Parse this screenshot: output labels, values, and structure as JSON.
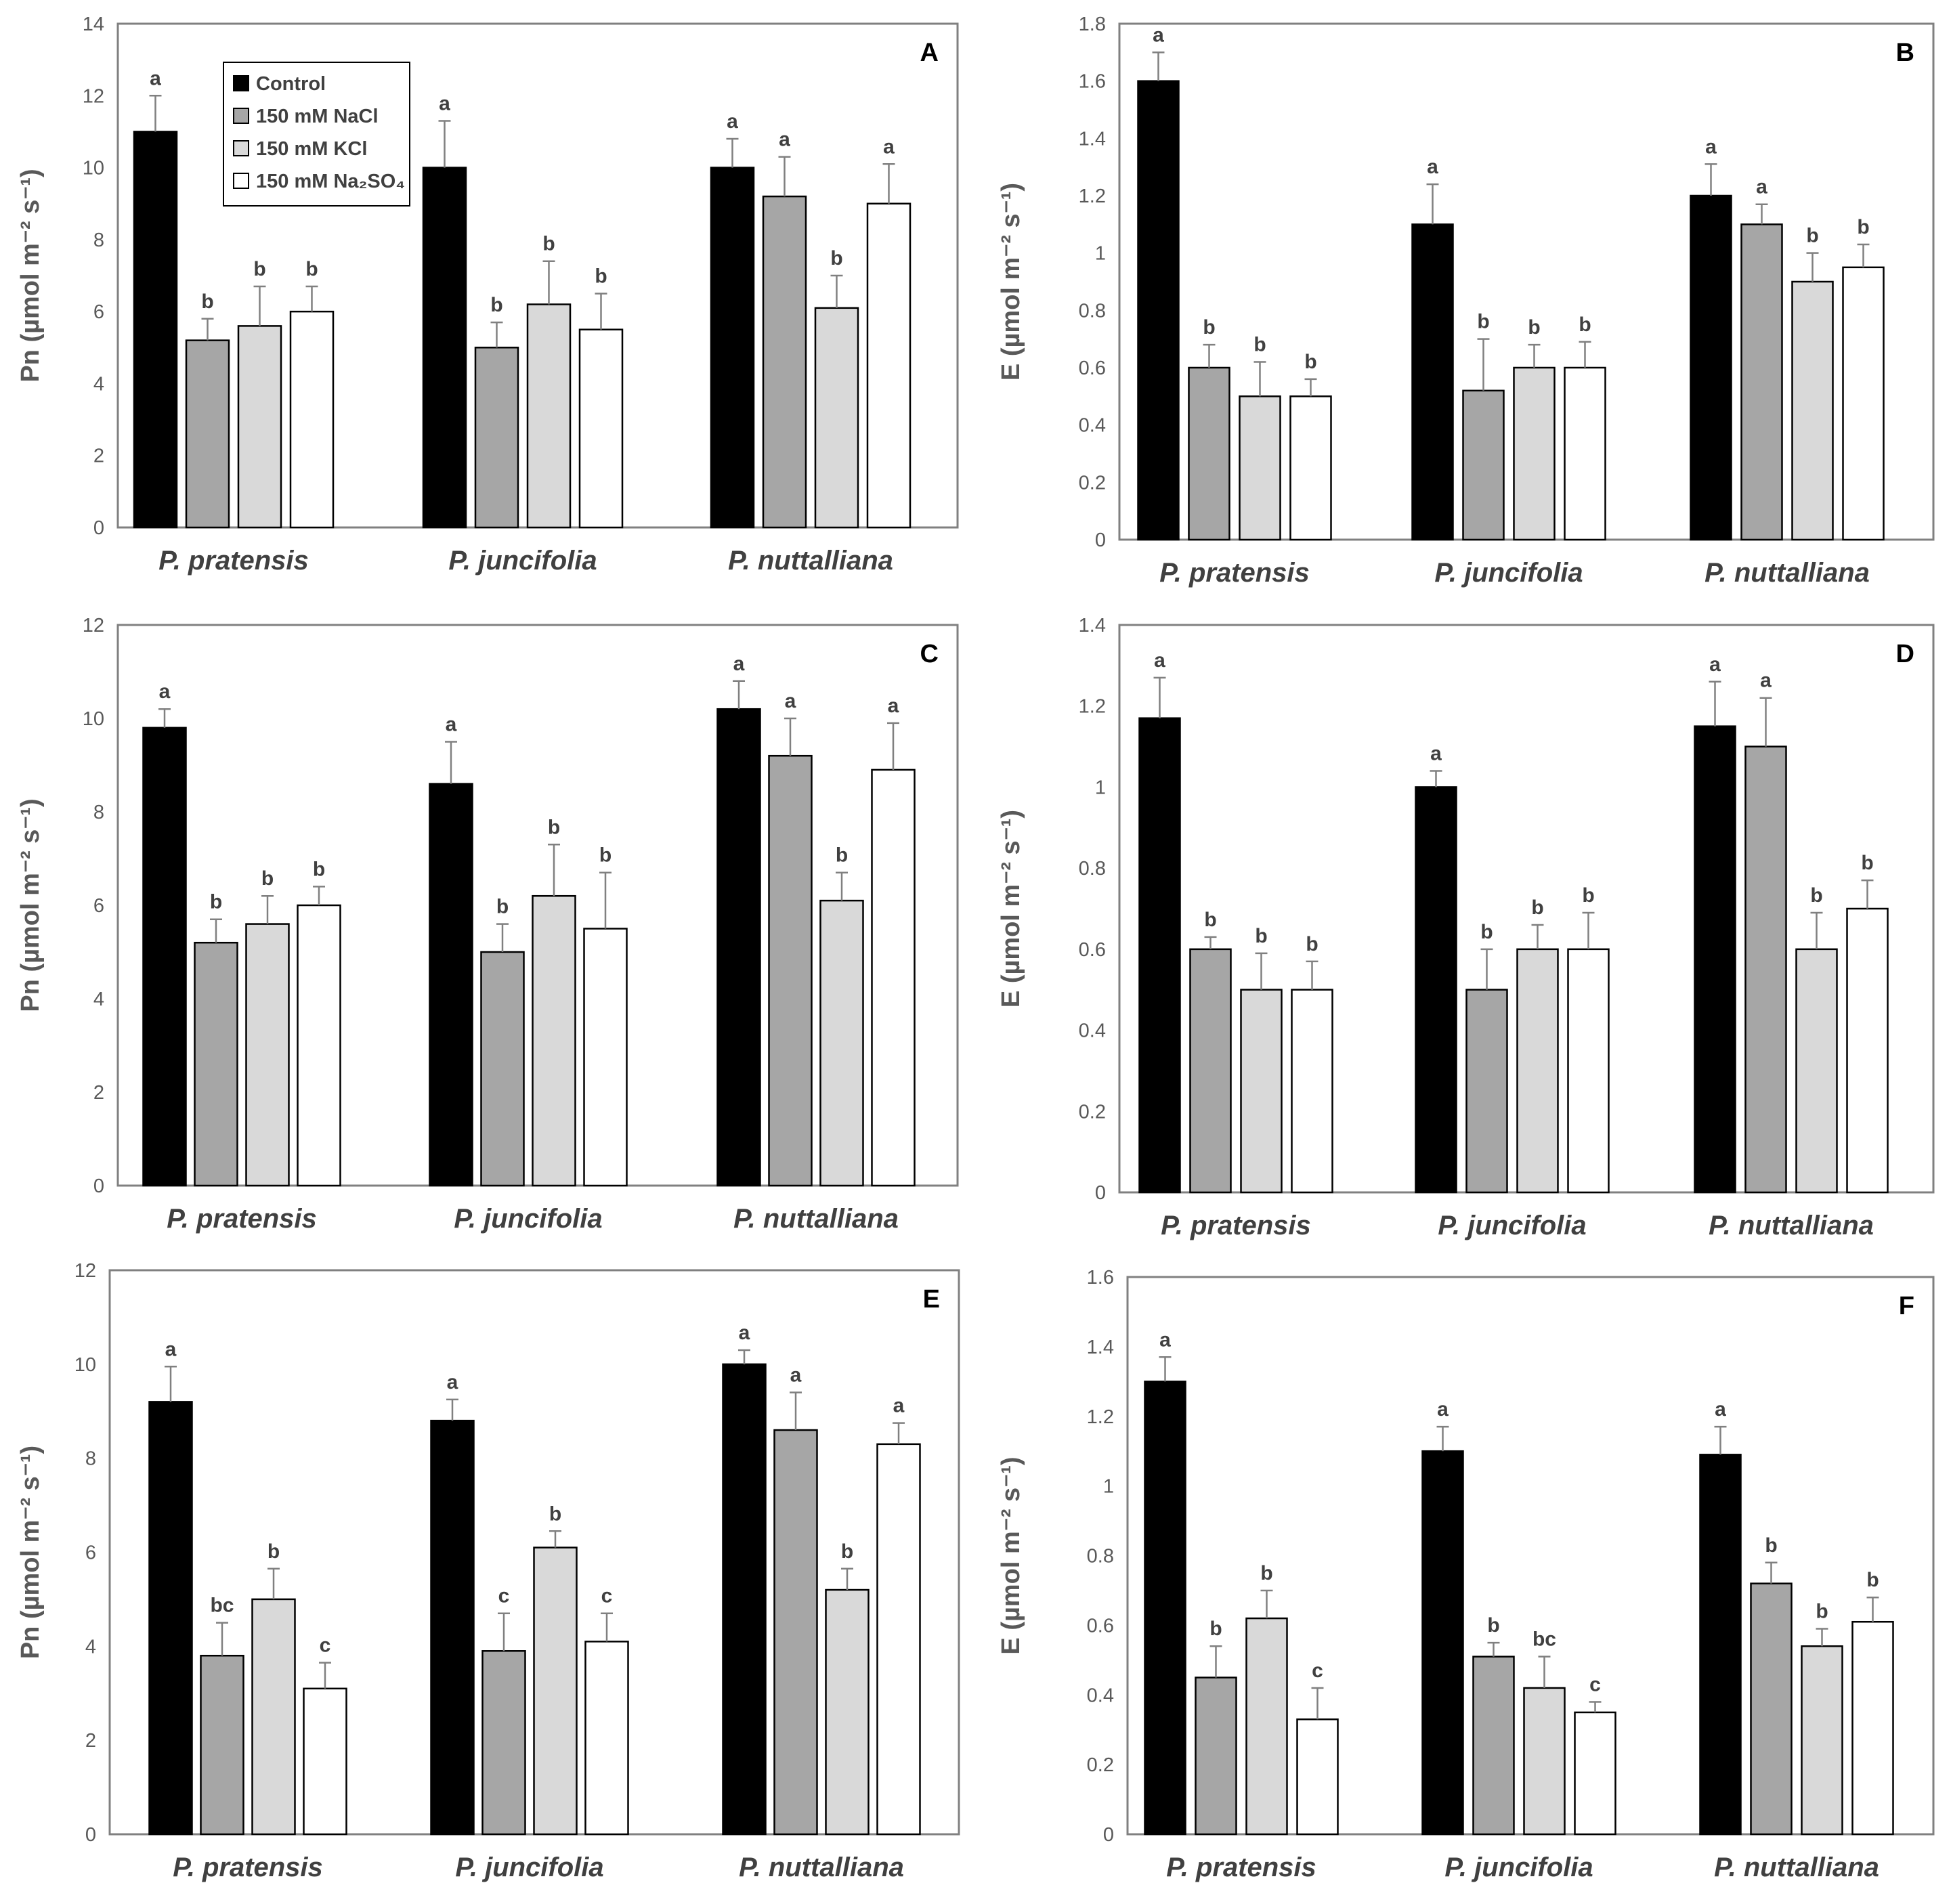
{
  "legend": {
    "items": [
      {
        "label": "Control",
        "color": "#000000"
      },
      {
        "label": "150 mM NaCl",
        "color": "#a6a6a6"
      },
      {
        "label": "150 mM KCl",
        "color": "#d9d9d9"
      },
      {
        "label": "150 mM Na₂SO₄",
        "color": "#ffffff"
      }
    ]
  },
  "chart_data": [
    {
      "type": "bar",
      "panel": "A",
      "categories": [
        "P. pratensis",
        "P. juncifolia",
        "P. nuttalliana"
      ],
      "ylabel": "Pn (µmol m⁻² s⁻¹)",
      "ylim": [
        0,
        14
      ],
      "yticks": [
        "0",
        "2",
        "4",
        "6",
        "8",
        "10",
        "12",
        "14"
      ],
      "series": [
        {
          "name": "Control",
          "values": [
            11,
            10,
            10
          ],
          "errors": [
            1.0,
            1.3,
            0.8
          ],
          "letters": [
            "a",
            "a",
            "a"
          ]
        },
        {
          "name": "150 mM NaCl",
          "values": [
            5.2,
            5.0,
            9.2
          ],
          "errors": [
            0.6,
            0.7,
            1.1
          ],
          "letters": [
            "b",
            "b",
            "a"
          ]
        },
        {
          "name": "150 mM KCl",
          "values": [
            5.6,
            6.2,
            6.1
          ],
          "errors": [
            1.1,
            1.2,
            0.9
          ],
          "letters": [
            "b",
            "b",
            "b"
          ]
        },
        {
          "name": "150 mM Na₂SO₄",
          "values": [
            6.0,
            5.5,
            9.0
          ],
          "errors": [
            0.7,
            1.0,
            1.1
          ],
          "letters": [
            "b",
            "b",
            "a"
          ]
        }
      ]
    },
    {
      "type": "bar",
      "panel": "B",
      "categories": [
        "P. pratensis",
        "P. juncifolia",
        "P. nuttalliana"
      ],
      "ylabel": "E (µmol m⁻² s⁻¹)",
      "ylim": [
        0,
        1.8
      ],
      "yticks": [
        "0",
        "0.2",
        "0.4",
        "0.6",
        "0.8",
        "1",
        "1.2",
        "1.4",
        "1.6",
        "1.8"
      ],
      "series": [
        {
          "name": "Control",
          "values": [
            1.6,
            1.1,
            1.2
          ],
          "errors": [
            0.1,
            0.14,
            0.11
          ],
          "letters": [
            "a",
            "a",
            "a"
          ]
        },
        {
          "name": "150 mM NaCl",
          "values": [
            0.6,
            0.52,
            1.1
          ],
          "errors": [
            0.08,
            0.18,
            0.07
          ],
          "letters": [
            "b",
            "b",
            "a"
          ]
        },
        {
          "name": "150 mM KCl",
          "values": [
            0.5,
            0.6,
            0.9
          ],
          "errors": [
            0.12,
            0.08,
            0.1
          ],
          "letters": [
            "b",
            "b",
            "b"
          ]
        },
        {
          "name": "150 mM Na₂SO₄",
          "values": [
            0.5,
            0.6,
            0.95
          ],
          "errors": [
            0.06,
            0.09,
            0.08
          ],
          "letters": [
            "b",
            "b",
            "b"
          ]
        }
      ]
    },
    {
      "type": "bar",
      "panel": "C",
      "categories": [
        "P. pratensis",
        "P. juncifolia",
        "P. nuttalliana"
      ],
      "ylabel": "Pn (µmol m⁻² s⁻¹)",
      "ylim": [
        0,
        12
      ],
      "yticks": [
        "0",
        "2",
        "4",
        "6",
        "8",
        "10",
        "12"
      ],
      "series": [
        {
          "name": "Control",
          "values": [
            9.8,
            8.6,
            10.2
          ],
          "errors": [
            0.4,
            0.9,
            0.6
          ],
          "letters": [
            "a",
            "a",
            "a"
          ]
        },
        {
          "name": "150 mM NaCl",
          "values": [
            5.2,
            5.0,
            9.2
          ],
          "errors": [
            0.5,
            0.6,
            0.8
          ],
          "letters": [
            "b",
            "b",
            "a"
          ]
        },
        {
          "name": "150 mM KCl",
          "values": [
            5.6,
            6.2,
            6.1
          ],
          "errors": [
            0.6,
            1.1,
            0.6
          ],
          "letters": [
            "b",
            "b",
            "b"
          ]
        },
        {
          "name": "150 mM Na₂SO₄",
          "values": [
            6.0,
            5.5,
            8.9
          ],
          "errors": [
            0.4,
            1.2,
            1.0
          ],
          "letters": [
            "b",
            "b",
            "a"
          ]
        }
      ]
    },
    {
      "type": "bar",
      "panel": "D",
      "categories": [
        "P. pratensis",
        "P. juncifolia",
        "P. nuttalliana"
      ],
      "ylabel": "E (µmol m⁻² s⁻¹)",
      "ylim": [
        0,
        1.4
      ],
      "yticks": [
        "0",
        "0.2",
        "0.4",
        "0.6",
        "0.8",
        "1",
        "1.2",
        "1.4"
      ],
      "series": [
        {
          "name": "Control",
          "values": [
            1.17,
            1.0,
            1.15
          ],
          "errors": [
            0.1,
            0.04,
            0.11
          ],
          "letters": [
            "a",
            "a",
            "a"
          ]
        },
        {
          "name": "150 mM NaCl",
          "values": [
            0.6,
            0.5,
            1.1
          ],
          "errors": [
            0.03,
            0.1,
            0.12
          ],
          "letters": [
            "b",
            "b",
            "a"
          ]
        },
        {
          "name": "150 mM KCl",
          "values": [
            0.5,
            0.6,
            0.6
          ],
          "errors": [
            0.09,
            0.06,
            0.09
          ],
          "letters": [
            "b",
            "b",
            "b"
          ]
        },
        {
          "name": "150 mM Na₂SO₄",
          "values": [
            0.5,
            0.6,
            0.7
          ],
          "errors": [
            0.07,
            0.09,
            0.07
          ],
          "letters": [
            "b",
            "b",
            "b"
          ]
        }
      ]
    },
    {
      "type": "bar",
      "panel": "E",
      "categories": [
        "P. pratensis",
        "P. juncifolia",
        "P. nuttalliana"
      ],
      "ylabel": "Pn (µmol m⁻² s⁻¹)",
      "ylim": [
        0,
        12
      ],
      "yticks": [
        "0",
        "2",
        "4",
        "6",
        "8",
        "10",
        "12"
      ],
      "series": [
        {
          "name": "Control",
          "values": [
            9.2,
            8.8,
            10.0
          ],
          "errors": [
            0.75,
            0.45,
            0.3
          ],
          "letters": [
            "a",
            "a",
            "a"
          ]
        },
        {
          "name": "150 mM NaCl",
          "values": [
            3.8,
            3.9,
            8.6
          ],
          "errors": [
            0.7,
            0.8,
            0.8
          ],
          "letters": [
            "bc",
            "c",
            "a"
          ]
        },
        {
          "name": "150 mM KCl",
          "values": [
            5.0,
            6.1,
            5.2
          ],
          "errors": [
            0.65,
            0.35,
            0.45
          ],
          "letters": [
            "b",
            "b",
            "b"
          ]
        },
        {
          "name": "150 mM Na₂SO₄",
          "values": [
            3.1,
            4.1,
            8.3
          ],
          "errors": [
            0.55,
            0.6,
            0.45
          ],
          "letters": [
            "c",
            "c",
            "a"
          ]
        }
      ]
    },
    {
      "type": "bar",
      "panel": "F",
      "categories": [
        "P. pratensis",
        "P. juncifolia",
        "P. nuttalliana"
      ],
      "ylabel": "E (µmol m⁻² s⁻¹)",
      "ylim": [
        0,
        1.6
      ],
      "yticks": [
        "0",
        "0.2",
        "0.4",
        "0.6",
        "0.8",
        "1",
        "1.2",
        "1.4",
        "1.6"
      ],
      "series": [
        {
          "name": "Control",
          "values": [
            1.3,
            1.1,
            1.09
          ],
          "errors": [
            0.07,
            0.07,
            0.08
          ],
          "letters": [
            "a",
            "a",
            "a"
          ]
        },
        {
          "name": "150 mM NaCl",
          "values": [
            0.45,
            0.51,
            0.72
          ],
          "errors": [
            0.09,
            0.04,
            0.06
          ],
          "letters": [
            "b",
            "b",
            "b"
          ]
        },
        {
          "name": "150 mM KCl",
          "values": [
            0.62,
            0.42,
            0.54
          ],
          "errors": [
            0.08,
            0.09,
            0.05
          ],
          "letters": [
            "b",
            "bc",
            "b"
          ]
        },
        {
          "name": "150 mM Na₂SO₄",
          "values": [
            0.33,
            0.35,
            0.61
          ],
          "errors": [
            0.09,
            0.03,
            0.07
          ],
          "letters": [
            "c",
            "c",
            "b"
          ]
        }
      ]
    }
  ]
}
